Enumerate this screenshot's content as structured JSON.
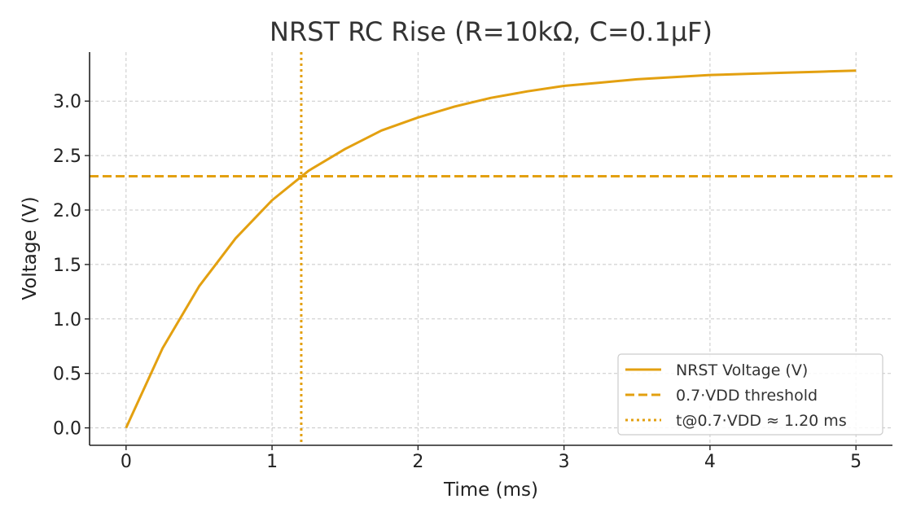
{
  "chart_data": {
    "type": "line",
    "title": "NRST RC Rise (R=10kΩ, C=0.1µF)",
    "xlabel": "Time (ms)",
    "ylabel": "Voltage (V)",
    "xlim": [
      -0.25,
      5.25
    ],
    "ylim": [
      -0.16,
      3.45
    ],
    "x_ticks": [
      0,
      1,
      2,
      3,
      4,
      5
    ],
    "x_tick_labels": [
      "0",
      "1",
      "2",
      "3",
      "4",
      "5"
    ],
    "y_ticks": [
      0.0,
      0.5,
      1.0,
      1.5,
      2.0,
      2.5,
      3.0
    ],
    "y_tick_labels": [
      "0.0",
      "0.5",
      "1.0",
      "1.5",
      "2.0",
      "2.5",
      "3.0"
    ],
    "grid": true,
    "legend_position": "bottom-right",
    "series": [
      {
        "name": "NRST Voltage (V)",
        "style": "solid",
        "color": "#E3A010",
        "x": [
          0,
          0.25,
          0.5,
          0.75,
          1.0,
          1.25,
          1.5,
          1.75,
          2.0,
          2.25,
          2.5,
          2.75,
          3.0,
          3.25,
          3.5,
          3.75,
          4.0,
          4.25,
          4.5,
          4.75,
          5.0
        ],
        "y": [
          0.0,
          0.73,
          1.3,
          1.74,
          2.09,
          2.36,
          2.56,
          2.73,
          2.85,
          2.95,
          3.03,
          3.09,
          3.14,
          3.17,
          3.2,
          3.22,
          3.24,
          3.25,
          3.26,
          3.27,
          3.28
        ]
      },
      {
        "name": "0.7·VDD threshold",
        "style": "dashed",
        "color": "#E3A010",
        "y": 2.31
      },
      {
        "name": "t@0.7·VDD ≈ 1.20 ms",
        "style": "dotted",
        "color": "#E3A010",
        "x": 1.2
      }
    ]
  }
}
